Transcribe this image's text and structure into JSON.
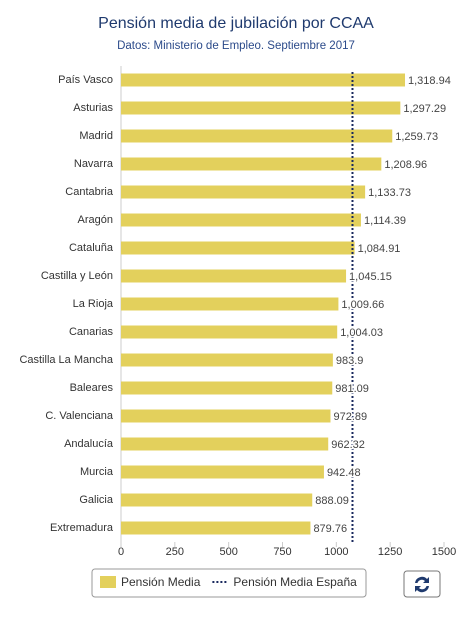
{
  "chart_data": {
    "type": "bar",
    "orientation": "horizontal",
    "title": "Pensión media de jubilación por CCAA",
    "subtitle": "Datos: Ministerio de Empleo. Septiembre 2017",
    "categories": [
      "País Vasco",
      "Asturias",
      "Madrid",
      "Navarra",
      "Cantabria",
      "Aragón",
      "Cataluña",
      "Castilla y León",
      "La Rioja",
      "Canarias",
      "Castilla La Mancha",
      "Baleares",
      "C. Valenciana",
      "Andalucía",
      "Murcia",
      "Galicia",
      "Extremadura"
    ],
    "series": [
      {
        "name": "Pensión Media",
        "color": "#e3d05c",
        "values": [
          1318.94,
          1297.29,
          1259.73,
          1208.96,
          1133.73,
          1114.39,
          1084.91,
          1045.15,
          1009.66,
          1004.03,
          983.9,
          981.09,
          972.89,
          962.32,
          942.48,
          888.09,
          879.76
        ],
        "value_labels": [
          "1,318.94",
          "1,297.29",
          "1,259.73",
          "1,208.96",
          "1,133.73",
          "1,114.39",
          "1,084.91",
          "1,045.15",
          "1,009.66",
          "1,004.03",
          "983.9",
          "981.09",
          "972.89",
          "962.32",
          "942.48",
          "888.09",
          "879.76"
        ]
      }
    ],
    "reference_line": {
      "name": "Pensión Media España",
      "color": "#1a2a5e",
      "value": 1075
    },
    "xlim": [
      0,
      1500
    ],
    "xticks": [
      0,
      250,
      500,
      750,
      1000,
      1250,
      1500
    ],
    "grid": false
  }
}
